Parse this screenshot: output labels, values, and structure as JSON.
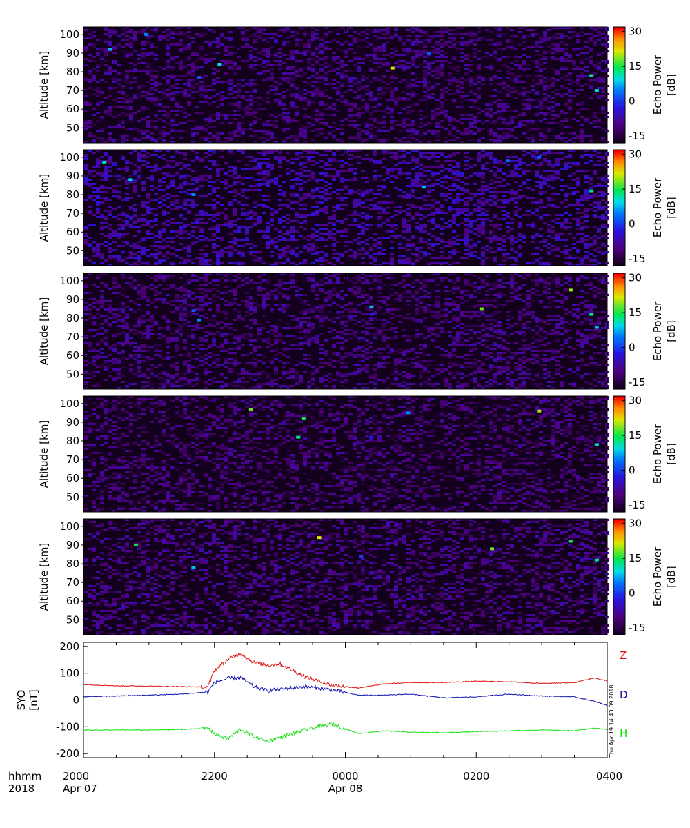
{
  "chart_data": [
    {
      "type": "heatmap",
      "ylabel": "Altitude [km]",
      "yticks": [
        50,
        60,
        70,
        80,
        90,
        100
      ],
      "ylim": [
        42,
        104
      ],
      "colorbar": {
        "label_line1": "Echo Power",
        "label_line2": "[dB]",
        "ticks": [
          30,
          15,
          0,
          -15
        ],
        "range": [
          -18,
          32
        ]
      },
      "background_level_db": -11,
      "echoes": [
        {
          "t": 0.05,
          "alt": 92,
          "db": 8
        },
        {
          "t": 0.12,
          "alt": 100,
          "db": 5
        },
        {
          "t": 0.22,
          "alt": 77,
          "db": 2
        },
        {
          "t": 0.26,
          "alt": 84,
          "db": 10
        },
        {
          "t": 0.59,
          "alt": 82,
          "db": 22
        },
        {
          "t": 0.66,
          "alt": 90,
          "db": 2
        },
        {
          "t": 0.97,
          "alt": 78,
          "db": 12
        },
        {
          "t": 0.98,
          "alt": 70,
          "db": 10
        }
      ]
    },
    {
      "type": "heatmap",
      "ylabel": "Altitude [km]",
      "yticks": [
        50,
        60,
        70,
        80,
        90,
        100
      ],
      "ylim": [
        42,
        104
      ],
      "colorbar": {
        "label_line1": "Echo Power",
        "label_line2": "[dB]",
        "ticks": [
          30,
          15,
          0,
          -15
        ],
        "range": [
          -18,
          32
        ]
      },
      "background_level_db": -8,
      "echoes": [
        {
          "t": 0.04,
          "alt": 97,
          "db": 12
        },
        {
          "t": 0.09,
          "alt": 88,
          "db": 10
        },
        {
          "t": 0.21,
          "alt": 80,
          "db": 5
        },
        {
          "t": 0.65,
          "alt": 84,
          "db": 8
        },
        {
          "t": 0.81,
          "alt": 98,
          "db": 3
        },
        {
          "t": 0.87,
          "alt": 100,
          "db": 2
        },
        {
          "t": 0.97,
          "alt": 82,
          "db": 12
        }
      ]
    },
    {
      "type": "heatmap",
      "ylabel": "Altitude [km]",
      "yticks": [
        50,
        60,
        70,
        80,
        90,
        100
      ],
      "ylim": [
        42,
        104
      ],
      "colorbar": {
        "label_line1": "Echo Power",
        "label_line2": "[dB]",
        "ticks": [
          30,
          15,
          0,
          -15
        ],
        "range": [
          -18,
          32
        ]
      },
      "background_level_db": -11,
      "echoes": [
        {
          "t": 0.21,
          "alt": 84,
          "db": 2
        },
        {
          "t": 0.22,
          "alt": 79,
          "db": 5
        },
        {
          "t": 0.55,
          "alt": 86,
          "db": 8
        },
        {
          "t": 0.55,
          "alt": 82,
          "db": -2
        },
        {
          "t": 0.76,
          "alt": 85,
          "db": 18
        },
        {
          "t": 0.93,
          "alt": 95,
          "db": 20
        },
        {
          "t": 0.97,
          "alt": 82,
          "db": 12
        },
        {
          "t": 0.98,
          "alt": 75,
          "db": 8
        }
      ]
    },
    {
      "type": "heatmap",
      "ylabel": "Altitude [km]",
      "yticks": [
        50,
        60,
        70,
        80,
        90,
        100
      ],
      "ylim": [
        42,
        104
      ],
      "colorbar": {
        "label_line1": "Echo Power",
        "label_line2": "[dB]",
        "ticks": [
          30,
          15,
          0,
          -15
        ],
        "range": [
          -18,
          32
        ]
      },
      "background_level_db": -12,
      "echoes": [
        {
          "t": 0.32,
          "alt": 97,
          "db": 18
        },
        {
          "t": 0.42,
          "alt": 92,
          "db": 15
        },
        {
          "t": 0.41,
          "alt": 82,
          "db": 12
        },
        {
          "t": 0.55,
          "alt": 82,
          "db": -3
        },
        {
          "t": 0.62,
          "alt": 95,
          "db": 5
        },
        {
          "t": 0.87,
          "alt": 96,
          "db": 20
        },
        {
          "t": 0.98,
          "alt": 78,
          "db": 10
        }
      ]
    },
    {
      "type": "heatmap",
      "ylabel": "Altitude [km]",
      "yticks": [
        50,
        60,
        70,
        80,
        90,
        100
      ],
      "ylim": [
        42,
        104
      ],
      "colorbar": {
        "label_line1": "Echo Power",
        "label_line2": "[dB]",
        "ticks": [
          30,
          15,
          0,
          -15
        ],
        "range": [
          -18,
          32
        ]
      },
      "background_level_db": -11,
      "echoes": [
        {
          "t": 0.1,
          "alt": 90,
          "db": 15
        },
        {
          "t": 0.21,
          "alt": 78,
          "db": 8
        },
        {
          "t": 0.45,
          "alt": 94,
          "db": 22
        },
        {
          "t": 0.53,
          "alt": 84,
          "db": 0
        },
        {
          "t": 0.78,
          "alt": 88,
          "db": 18
        },
        {
          "t": 0.93,
          "alt": 92,
          "db": 15
        },
        {
          "t": 0.98,
          "alt": 82,
          "db": 12
        }
      ]
    },
    {
      "type": "line",
      "ylabel_line1": "SYO",
      "ylabel_line2": "[nT]",
      "ylim": [
        -215,
        215
      ],
      "yticks": [
        200,
        100,
        0,
        -100,
        -200
      ],
      "time_hours_after_2000": [
        0,
        0.5,
        1,
        1.5,
        1.9,
        2.0,
        2.2,
        2.4,
        2.6,
        2.8,
        3.0,
        3.4,
        3.8,
        4.2,
        4.6,
        5,
        5.5,
        6,
        6.5,
        7,
        7.5,
        7.8,
        8
      ],
      "series": [
        {
          "name": "Z",
          "color": "#e01010",
          "values": [
            58,
            53,
            52,
            50,
            48,
            110,
            150,
            175,
            140,
            130,
            135,
            85,
            55,
            45,
            60,
            65,
            65,
            70,
            68,
            62,
            65,
            82,
            72
          ]
        },
        {
          "name": "D",
          "color": "#1010b0",
          "values": [
            12,
            15,
            18,
            22,
            30,
            65,
            80,
            85,
            50,
            35,
            40,
            50,
            38,
            18,
            18,
            22,
            8,
            12,
            22,
            15,
            12,
            -5,
            -20
          ]
        },
        {
          "name": "H",
          "color": "#10e010",
          "values": [
            -112,
            -112,
            -112,
            -110,
            -105,
            -125,
            -145,
            -110,
            -135,
            -155,
            -140,
            -110,
            -90,
            -125,
            -115,
            -120,
            -122,
            -118,
            -115,
            -112,
            -115,
            -105,
            -110
          ]
        }
      ]
    }
  ],
  "x_axis": {
    "row1_label": "hhmm",
    "row2_label": "2018",
    "ticks": [
      {
        "hours": 0,
        "label": "2000",
        "date": "Apr 07"
      },
      {
        "hours": 2,
        "label": "2200",
        "date": ""
      },
      {
        "hours": 4,
        "label": "0000",
        "date": "Apr 08"
      },
      {
        "hours": 6,
        "label": "0200",
        "date": ""
      },
      {
        "hours": 8,
        "label": "0400",
        "date": ""
      }
    ],
    "minor_every_hours": 0.5,
    "range_hours": [
      0,
      8
    ]
  },
  "timestamp": "Thu Apr 19 14:43:09 2018"
}
